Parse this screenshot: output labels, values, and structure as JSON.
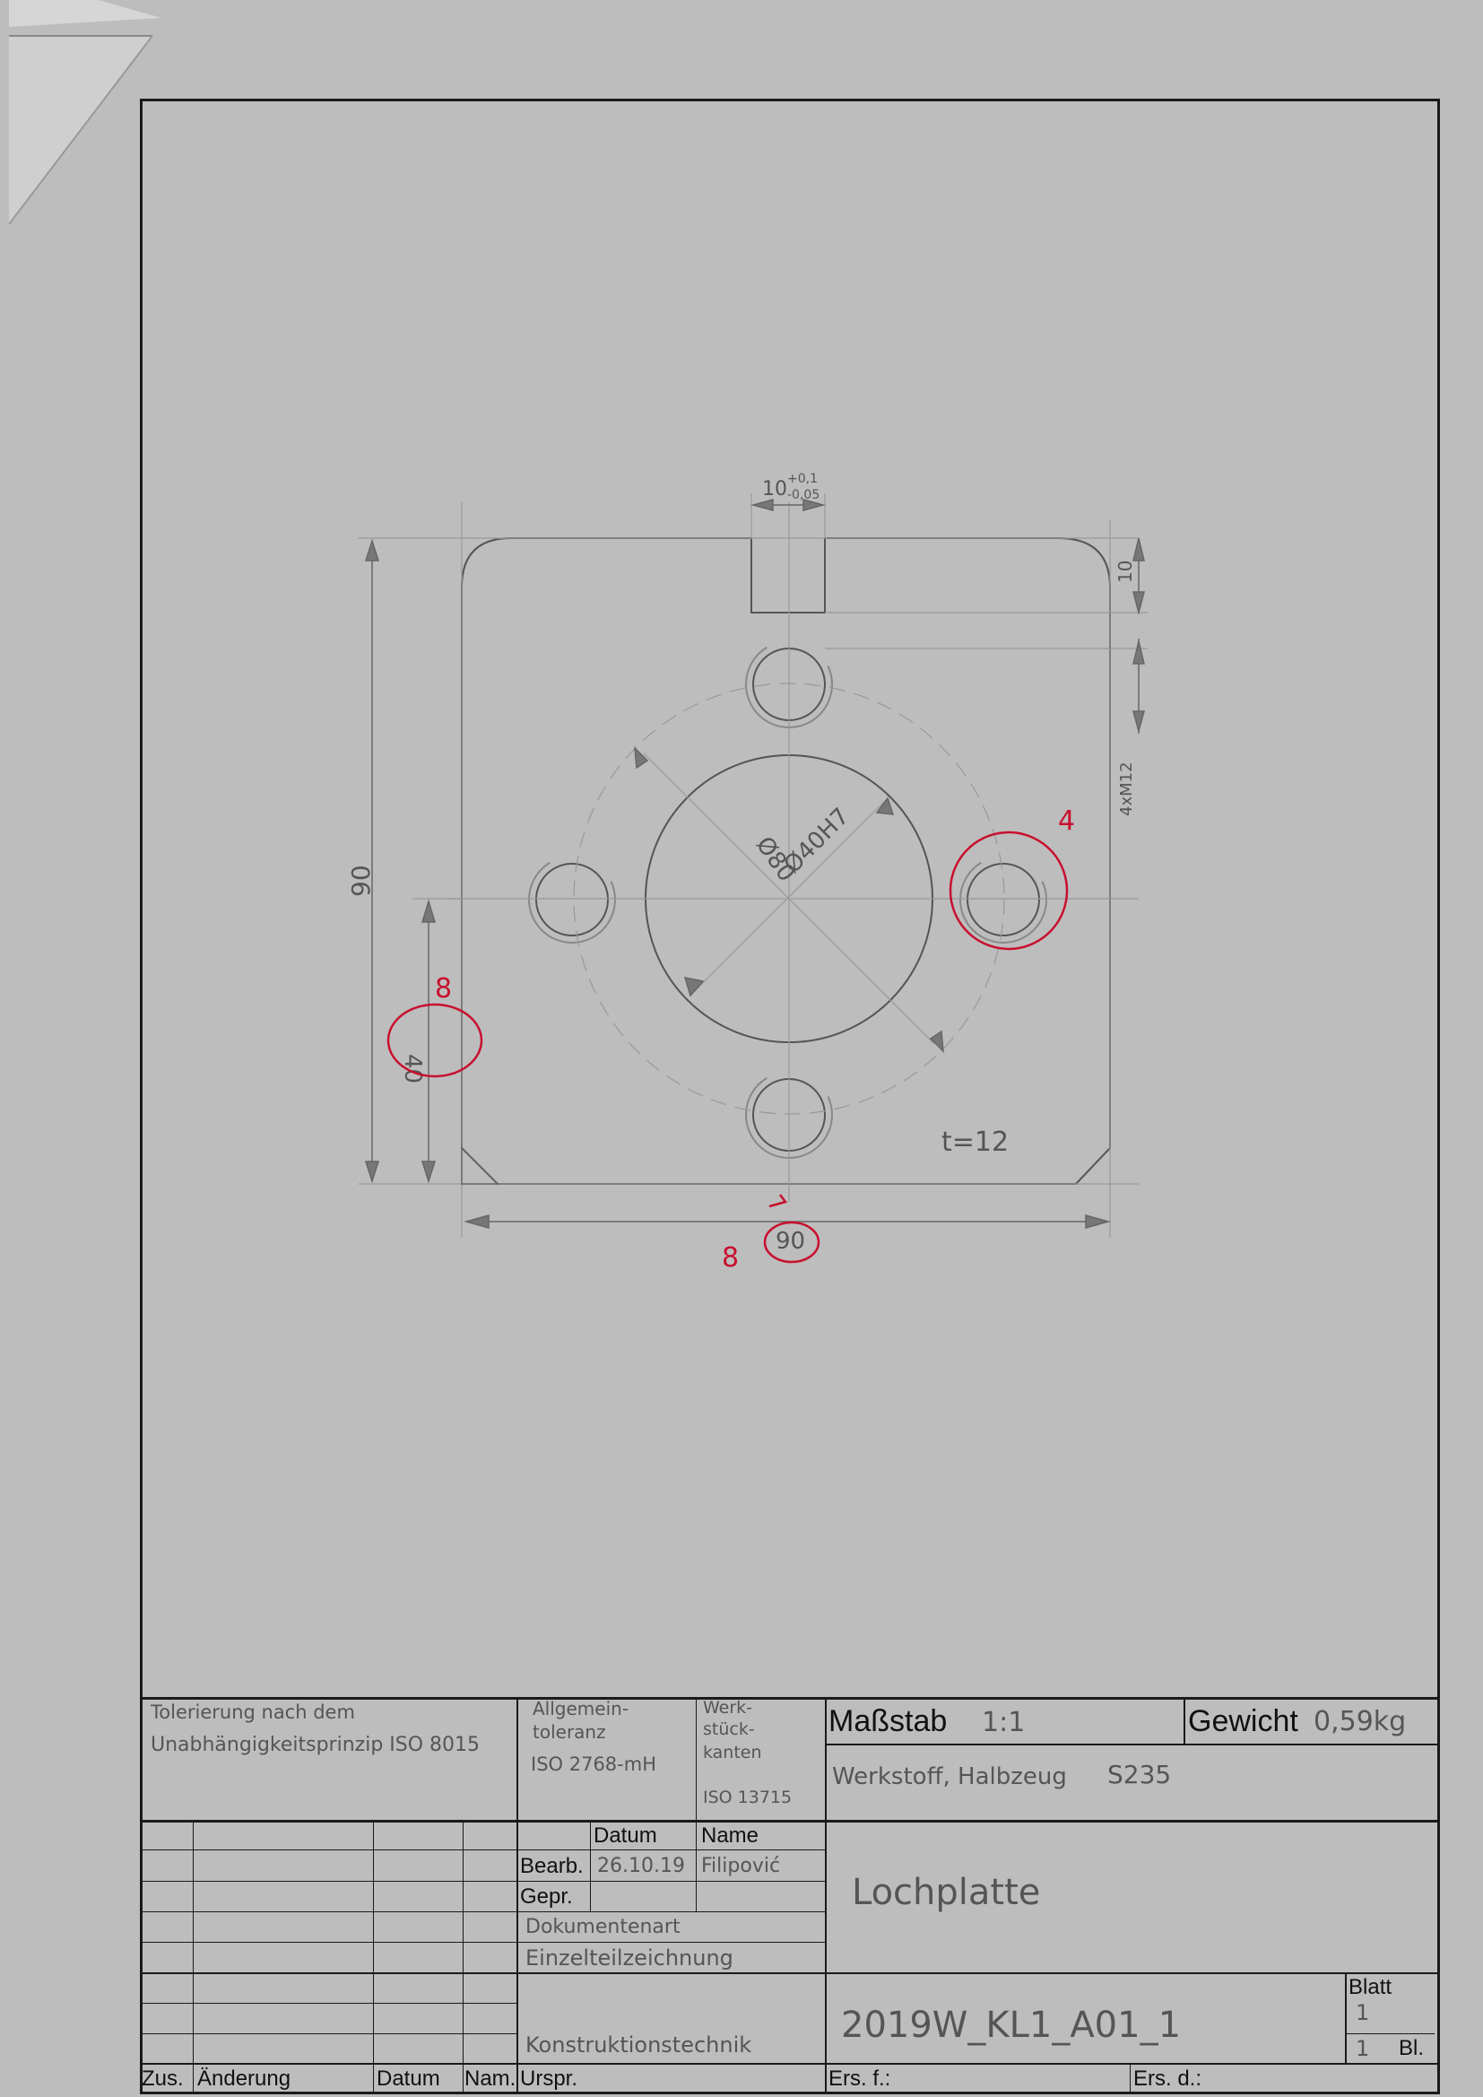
{
  "drawing": {
    "dim_slot_width": "10",
    "dim_slot_tol_upper": "+0,1",
    "dim_slot_tol_lower": "-0,05",
    "dim_slot_depth": "10",
    "dim_thread": "4xM12",
    "dim_height_overall": "90",
    "dim_height_partial": "40",
    "dim_width_overall": "90",
    "dim_pitch_circle": "Ø80",
    "dim_bore": "Ø40H7",
    "thickness": "t=12",
    "markup": {
      "hole_note": "4",
      "height_note": "8",
      "width_note": "8"
    }
  },
  "title_block": {
    "tolerancing_note_line1": "Tolerierung nach dem",
    "tolerancing_note_line2": "Unabhängigkeitsprinzip ISO 8015",
    "general_tol_line1": "Allgemein-",
    "general_tol_line2": "toleranz",
    "general_tol_line3": "ISO 2768-mH",
    "workpiece_edges_line1": "Werk-",
    "workpiece_edges_line2": "stück-",
    "workpiece_edges_line3": "kanten",
    "workpiece_edges_line4": "ISO 13715",
    "scale_label": "Maßstab",
    "scale_value": "1:1",
    "weight_label": "Gewicht",
    "weight_value": "0,59kg",
    "material_label": "Werkstoff, Halbzeug",
    "material_value": "S235",
    "col_date": "Datum",
    "col_name": "Name",
    "row_bearb": "Bearb.",
    "row_gepr": "Gepr.",
    "bearb_date": "26.10.19",
    "bearb_name": "Filipović",
    "part_title": "Lochplatte",
    "doc_type_label": "Dokumentenart",
    "doc_type_value": "Einzelteilzeichnung",
    "department": "Konstruktionstechnik",
    "drawing_number": "2019W_KL1_A01_1",
    "sheet_label": "Blatt",
    "sheet_value": "1",
    "sheets_total": "1",
    "sheets_label": "Bl.",
    "footer_zus": "Zus.",
    "footer_aenderung": "Änderung",
    "footer_datum": "Datum",
    "footer_nam": "Nam.",
    "footer_urspr": "Urspr.",
    "footer_ersf": "Ers. f.:",
    "footer_ersd": "Ers. d.:"
  }
}
